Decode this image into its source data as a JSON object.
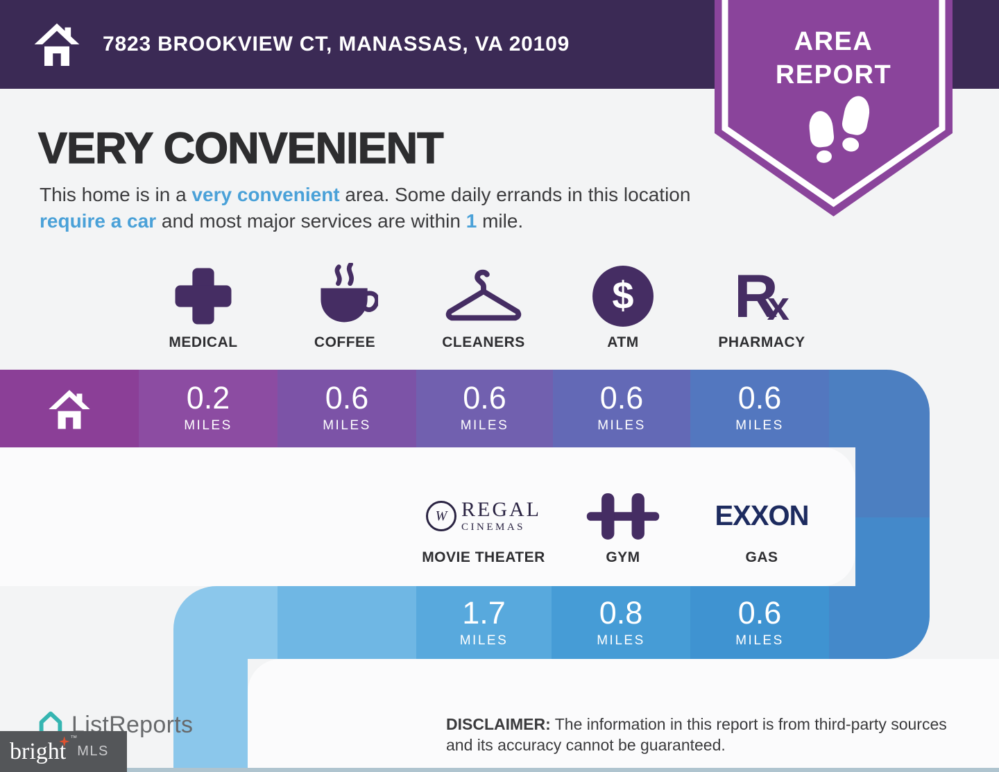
{
  "header": {
    "address": "7823 BROOKVIEW CT, MANASSAS, VA 20109",
    "badge": {
      "line1": "AREA",
      "line2": "REPORT"
    }
  },
  "intro": {
    "title": "VERY CONVENIENT",
    "paragraph": [
      {
        "text": "This home is in a "
      },
      {
        "text": "very convenient",
        "highlight": true
      },
      {
        "text": " area. Some daily errands in this location "
      },
      {
        "text": "require a car",
        "highlight": true
      },
      {
        "text": " and most major services are within "
      },
      {
        "text": "1",
        "highlight": true
      },
      {
        "text": " mile."
      }
    ]
  },
  "services": {
    "miles_word": "MILES",
    "row1": [
      {
        "label": "MEDICAL",
        "distance": "0.2"
      },
      {
        "label": "COFFEE",
        "distance": "0.6"
      },
      {
        "label": "CLEANERS",
        "distance": "0.6"
      },
      {
        "label": "ATM",
        "distance": "0.6"
      },
      {
        "label": "PHARMACY",
        "distance": "0.6"
      }
    ],
    "row2": [
      {
        "label": "MOVIE THEATER",
        "distance": "1.7",
        "brand": {
          "monogram": "W",
          "name": "REGAL",
          "sub": "CINEMAS"
        }
      },
      {
        "label": "GYM",
        "distance": "0.8"
      },
      {
        "label": "GAS",
        "distance": "0.6",
        "brand": {
          "name": "EXXON"
        }
      }
    ],
    "atm_symbol": "$",
    "pharmacy_glyph": {
      "r": "R",
      "x": "x"
    }
  },
  "footer": {
    "disclaimer_label": "DISCLAIMER:",
    "disclaimer_text": " The information in this report is from third-party sources and its accuracy cannot be guaranteed.",
    "listreports": "ListReports",
    "bright": "bright",
    "bright_tm": "™",
    "mls": "MLS"
  },
  "palette": {
    "header_bg": "#3B2A55",
    "badge_purple": "#8A449B",
    "icon_purple": "#452D63",
    "highlight_blue": "#4AA1D8",
    "exxon_navy": "#1D2B5F",
    "regal_navy": "#2A2342",
    "listreports_teal": "#35B5B1",
    "bright_star_orange": "#DD5230",
    "top_bar_segments": [
      "#8B3F97",
      "#8C4CA2",
      "#7C53A7",
      "#7160AF",
      "#6369B6",
      "#5377BF",
      "#4C7FC1"
    ],
    "bottom_bar_segments": [
      "#8BC7EB",
      "#6FB7E4",
      "#58A9DD",
      "#469CD6",
      "#3F93D1",
      "#4489CA"
    ]
  }
}
